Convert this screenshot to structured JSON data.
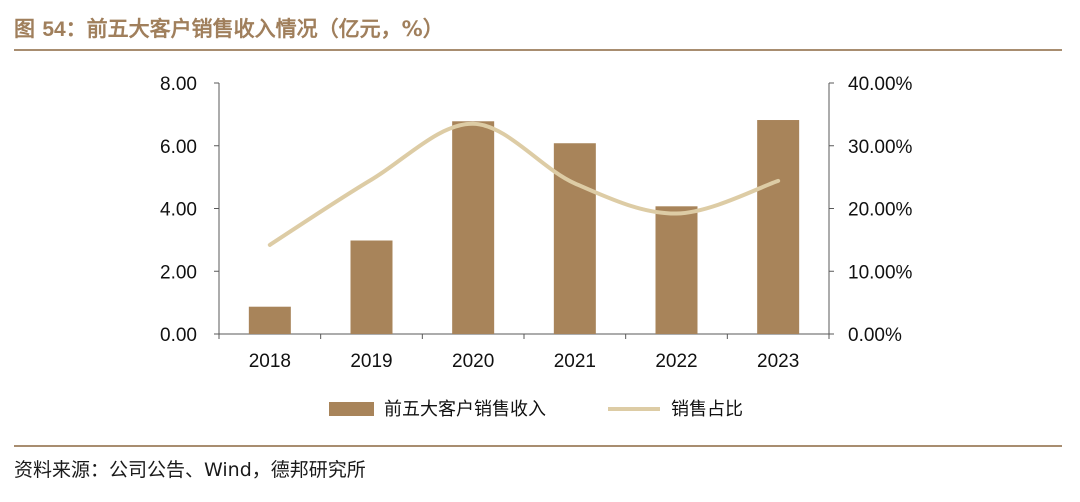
{
  "header": {
    "figure_label": "图",
    "figure_number": "54",
    "title": "：前五大客户销售收入情况（亿元，%）"
  },
  "footer": {
    "source": "资料来源：公司公告、Wind，德邦研究所"
  },
  "colors": {
    "bar": "#a8845a",
    "line": "#ddcca5",
    "axis": "#595959",
    "rule": "#a88d70",
    "title": "#a07f5c"
  },
  "chart_data": {
    "type": "bar",
    "categories": [
      "2018",
      "2019",
      "2020",
      "2021",
      "2022",
      "2023"
    ],
    "series": [
      {
        "name": "前五大客户销售收入",
        "type": "bar",
        "axis": "left",
        "values": [
          0.87,
          2.98,
          6.78,
          6.08,
          4.07,
          6.82
        ]
      },
      {
        "name": "销售占比",
        "type": "line",
        "axis": "right",
        "values": [
          14.2,
          24.6,
          33.5,
          24.0,
          19.2,
          24.4
        ]
      }
    ],
    "y_left": {
      "ylim": [
        0,
        8
      ],
      "ticks": [
        "0.00",
        "2.00",
        "4.00",
        "6.00",
        "8.00"
      ]
    },
    "y_right": {
      "ylim": [
        0,
        40
      ],
      "ticks": [
        "0.00%",
        "10.00%",
        "20.00%",
        "30.00%",
        "40.00%"
      ]
    },
    "legend_position": "bottom",
    "grid": false
  }
}
